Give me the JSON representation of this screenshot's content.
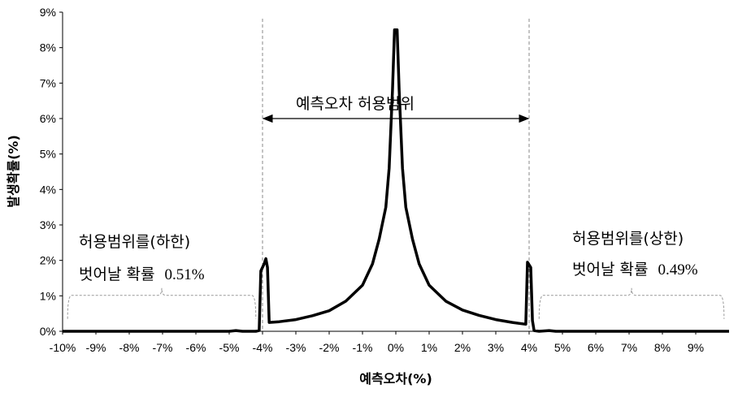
{
  "chart_data": {
    "type": "line",
    "xlabel": "예측오차(%)",
    "ylabel": "발생확률(%)",
    "xlim": [
      -10,
      10
    ],
    "ylim": [
      0,
      9
    ],
    "x_ticks": [
      "-10%",
      "-9%",
      "-8%",
      "-7%",
      "-6%",
      "-5%",
      "-4%",
      "-3%",
      "-2%",
      "-1%",
      "0%",
      "1%",
      "2%",
      "3%",
      "4%",
      "5%",
      "6%",
      "7%",
      "8%",
      "9%"
    ],
    "y_ticks": [
      "0%",
      "1%",
      "2%",
      "3%",
      "4%",
      "5%",
      "6%",
      "7%",
      "8%",
      "9%"
    ],
    "grid": false,
    "series": [
      {
        "color": "#000000",
        "points": [
          [
            -10,
            0
          ],
          [
            -5,
            0
          ],
          [
            -4.8,
            0.02
          ],
          [
            -4.6,
            0
          ],
          [
            -4.2,
            0
          ],
          [
            -4.1,
            0.02
          ],
          [
            -4.05,
            1.7
          ],
          [
            -3.95,
            1.9
          ],
          [
            -3.9,
            2.05
          ],
          [
            -3.85,
            1.8
          ],
          [
            -3.8,
            0.25
          ],
          [
            -3.5,
            0.27
          ],
          [
            -3.0,
            0.33
          ],
          [
            -2.5,
            0.44
          ],
          [
            -2.0,
            0.58
          ],
          [
            -1.5,
            0.85
          ],
          [
            -1.0,
            1.3
          ],
          [
            -0.7,
            1.9
          ],
          [
            -0.5,
            2.6
          ],
          [
            -0.3,
            3.5
          ],
          [
            -0.2,
            4.6
          ],
          [
            -0.1,
            6.8
          ],
          [
            -0.04,
            8.5
          ],
          [
            0.04,
            8.5
          ],
          [
            0.1,
            6.8
          ],
          [
            0.2,
            4.6
          ],
          [
            0.3,
            3.5
          ],
          [
            0.5,
            2.6
          ],
          [
            0.7,
            1.9
          ],
          [
            1.0,
            1.3
          ],
          [
            1.5,
            0.85
          ],
          [
            2.0,
            0.6
          ],
          [
            2.5,
            0.45
          ],
          [
            3.0,
            0.33
          ],
          [
            3.5,
            0.25
          ],
          [
            3.9,
            0.2
          ],
          [
            3.95,
            1.95
          ],
          [
            4.05,
            1.8
          ],
          [
            4.1,
            0.3
          ],
          [
            4.15,
            0.02
          ],
          [
            4.3,
            0
          ],
          [
            4.6,
            0.02
          ],
          [
            4.8,
            0
          ],
          [
            10,
            0
          ]
        ]
      }
    ],
    "tolerance_lines_x": [
      -4,
      4
    ],
    "range_label": "예측오차 허용범위",
    "lower_note": {
      "line1": "허용범위를(하한)",
      "line2_text": "벗어날 확률",
      "line2_value": "0.51%"
    },
    "upper_note": {
      "line1": "허용범위를(상한)",
      "line2_text": "벗어날 확률",
      "line2_value": "0.49%"
    }
  }
}
